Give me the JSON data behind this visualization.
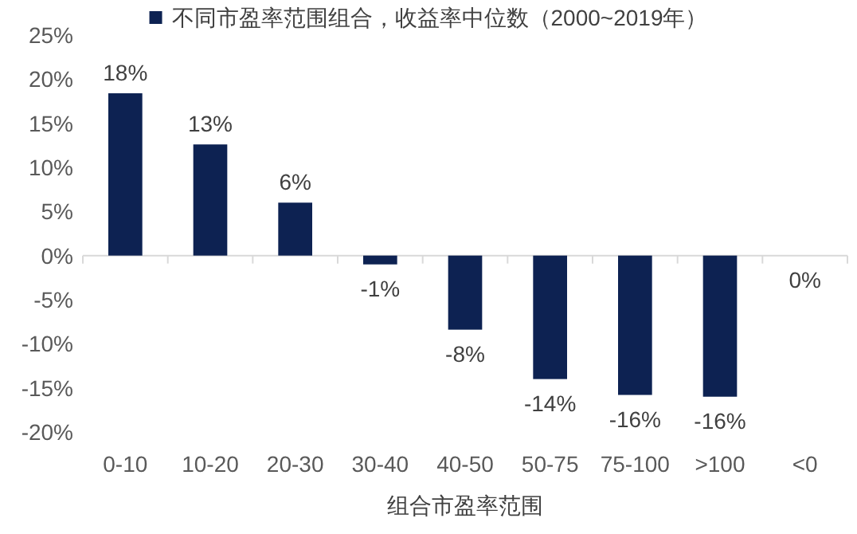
{
  "chart_data": {
    "type": "bar",
    "xlabel": "组合市盈率范围",
    "categories": [
      "0-10",
      "10-20",
      "20-30",
      "30-40",
      "40-50",
      "50-75",
      "75-100",
      ">100",
      "<0"
    ],
    "series": [
      {
        "name": "不同市盈率范围组合，收益率中位数（2000~2019年）",
        "color": "#0d2252",
        "values": [
          18.4,
          12.6,
          6,
          -1,
          -8.4,
          -14,
          -15.8,
          -16,
          0
        ],
        "value_labels": [
          "18%",
          "13%",
          "6%",
          "-1%",
          "-8%",
          "-14%",
          "-16%",
          "-16%",
          "0%"
        ]
      }
    ],
    "ylim": [
      -20,
      25
    ],
    "yticks": [
      {
        "value": -20,
        "label": "-20%"
      },
      {
        "value": -15,
        "label": "-15%"
      },
      {
        "value": -10,
        "label": "-10%"
      },
      {
        "value": -5,
        "label": "-5%"
      },
      {
        "value": 0,
        "label": "0%"
      },
      {
        "value": 5,
        "label": "5%"
      },
      {
        "value": 10,
        "label": "10%"
      },
      {
        "value": 15,
        "label": "15%"
      },
      {
        "value": 20,
        "label": "20%"
      },
      {
        "value": 25,
        "label": "25%"
      }
    ],
    "legend": "top"
  }
}
